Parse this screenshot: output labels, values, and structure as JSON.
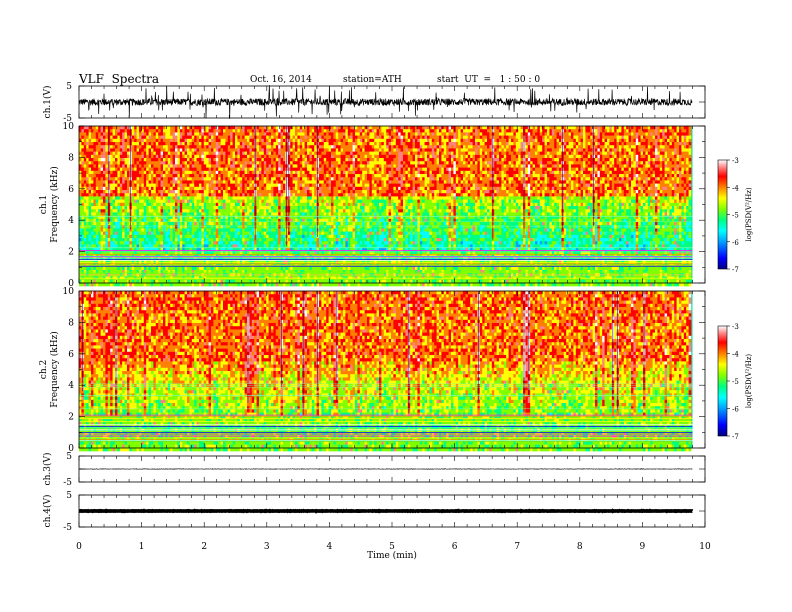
{
  "header": {
    "title": "VLF  Spectra",
    "date": "Oct. 16, 2014",
    "station": "station=ATH",
    "start": "start  UT  =   1 : 50 : 0"
  },
  "chart_data": [
    {
      "type": "line",
      "name": "ch1-waveform",
      "ylabel": "ch.1(V)",
      "ylim": [
        -5,
        5
      ],
      "yticks": [
        "5",
        "-5"
      ],
      "x_range_min": [
        0,
        9.8
      ],
      "baseline": 0,
      "amplitude": 1.2
    },
    {
      "type": "heatmap",
      "name": "ch1-spectrogram",
      "ylabel": "ch.1\nFrequency (kHz)",
      "ylabel_line1": "ch.1",
      "ylabel_line2": "Frequency (kHz)",
      "ylim": [
        0,
        10
      ],
      "yticks": [
        "0",
        "2",
        "4",
        "6",
        "8",
        "10"
      ],
      "x_range_min": [
        0,
        9.8
      ],
      "colorbar": {
        "label": "log(PSD(V²/Hz)",
        "range": [
          -7,
          -3
        ],
        "ticks": [
          "-3",
          "-4",
          "-5",
          "-6",
          "-7"
        ]
      }
    },
    {
      "type": "heatmap",
      "name": "ch2-spectrogram",
      "ylabel_line1": "ch.2",
      "ylabel_line2": "Frequency (kHz)",
      "ylim": [
        0,
        10
      ],
      "yticks": [
        "0",
        "2",
        "4",
        "6",
        "8",
        "10"
      ],
      "x_range_min": [
        0,
        9.8
      ],
      "colorbar": {
        "label": "log(PSD(V²/Hz)",
        "range": [
          -7,
          -3
        ],
        "ticks": [
          "-3",
          "-4",
          "-5",
          "-6",
          "-7"
        ]
      }
    },
    {
      "type": "line",
      "name": "ch3-waveform",
      "ylabel": "ch.3(V)",
      "ylim": [
        -5,
        5
      ],
      "yticks": [
        "5",
        "-5"
      ],
      "x_range_min": [
        0,
        9.8
      ],
      "baseline": 0,
      "amplitude": 0.1
    },
    {
      "type": "line",
      "name": "ch4-waveform",
      "ylabel": "ch.4(V)",
      "ylim": [
        -5,
        5
      ],
      "yticks": [
        "5",
        "-5"
      ],
      "x_range_min": [
        0,
        9.8
      ],
      "baseline": 0,
      "amplitude": 0.05
    }
  ],
  "xaxis": {
    "label": "Time  (min)",
    "range": [
      0,
      10
    ],
    "ticks": [
      "0",
      "1",
      "2",
      "3",
      "4",
      "5",
      "6",
      "7",
      "8",
      "9",
      "10"
    ]
  },
  "colors": {
    "colormap": [
      "#000080",
      "#0000ff",
      "#00a0ff",
      "#00ffff",
      "#00ff80",
      "#80ff00",
      "#ffff00",
      "#ff8000",
      "#ff0000",
      "#ff8080",
      "#ffffff"
    ]
  }
}
